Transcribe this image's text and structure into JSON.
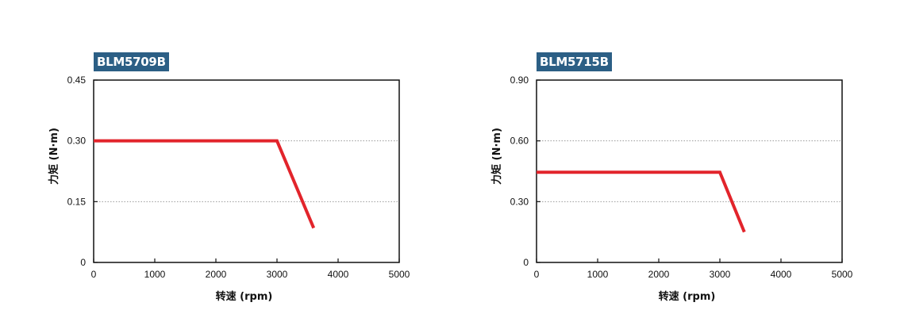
{
  "chart_data": [
    {
      "type": "line",
      "title": "BLM5709B",
      "xlabel": "转速 (rpm)",
      "ylabel": "力矩 (N·m)",
      "xlim": [
        0,
        5000
      ],
      "ylim": [
        0,
        0.45
      ],
      "x_ticks": [
        "0",
        "1000",
        "2000",
        "3000",
        "4000",
        "5000"
      ],
      "y_ticks": [
        "0",
        "0.15",
        "0.30",
        "0.45"
      ],
      "y_tick_values": [
        0,
        0.15,
        0.3,
        0.45
      ],
      "grid": "horizontal dotted",
      "series": [
        {
          "x": [
            0,
            3000,
            3600
          ],
          "y": [
            0.3,
            0.3,
            0.085
          ],
          "color": "#e2242b"
        }
      ]
    },
    {
      "type": "line",
      "title": "BLM5715B",
      "xlabel": "转速 (rpm)",
      "ylabel": "力矩 (N·m)",
      "xlim": [
        0,
        5000
      ],
      "ylim": [
        0,
        0.9
      ],
      "x_ticks": [
        "0",
        "1000",
        "2000",
        "3000",
        "4000",
        "5000"
      ],
      "y_ticks": [
        "0",
        "0.30",
        "0.60",
        "0.90"
      ],
      "y_tick_values": [
        0,
        0.3,
        0.6,
        0.9
      ],
      "grid": "horizontal dotted",
      "series": [
        {
          "x": [
            0,
            3000,
            3400
          ],
          "y": [
            0.445,
            0.445,
            0.15
          ],
          "color": "#e2242b"
        }
      ]
    }
  ]
}
